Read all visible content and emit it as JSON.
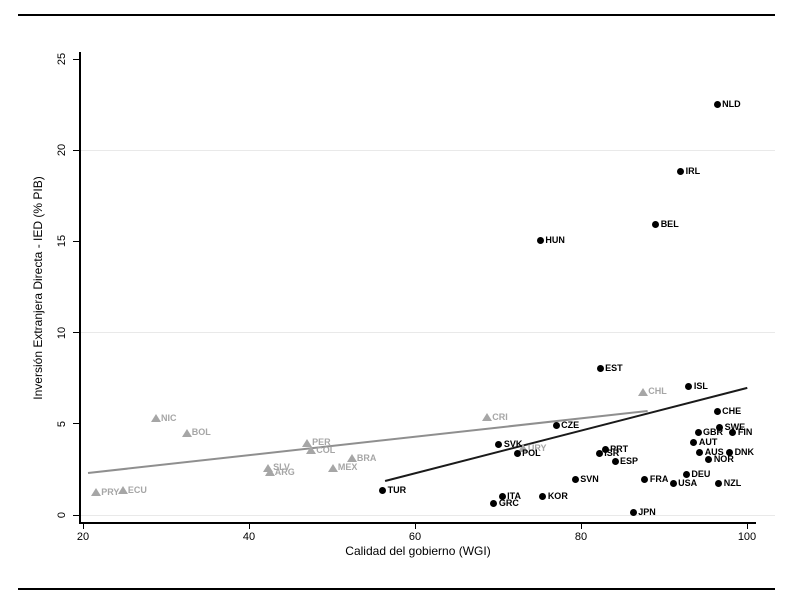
{
  "chart_data": {
    "type": "scatter",
    "title": "",
    "xlabel": "Calidad del gobierno (WGI)",
    "ylabel": "Inversión Extranjera Directa - IED (% PIB)",
    "xlim": [
      20,
      100
    ],
    "ylim": [
      0,
      25
    ],
    "x_ticks": [
      20,
      40,
      60,
      80,
      100
    ],
    "y_ticks": [
      0,
      5,
      10,
      15,
      20,
      25
    ],
    "gridline_y_values": [
      0,
      10,
      20
    ],
    "grid_color": "#e9e9e9",
    "series": [
      {
        "name": "gray-triangles",
        "marker": "triangle",
        "color": "#a6a6a6",
        "label_color": "#a6a6a6",
        "points": [
          {
            "label": "PRY",
            "x": 21.6,
            "y": 1.25
          },
          {
            "label": "ECU",
            "x": 24.8,
            "y": 1.35
          },
          {
            "label": "NIC",
            "x": 28.8,
            "y": 5.3
          },
          {
            "label": "BOL",
            "x": 32.5,
            "y": 4.5
          },
          {
            "label": "SLV",
            "x": 42.3,
            "y": 2.6
          },
          {
            "label": "ARG",
            "x": 42.5,
            "y": 2.35
          },
          {
            "label": "PER",
            "x": 47.0,
            "y": 3.95
          },
          {
            "label": "COL",
            "x": 47.5,
            "y": 3.55
          },
          {
            "label": "MEX",
            "x": 50.1,
            "y": 2.6
          },
          {
            "label": "BRA",
            "x": 52.4,
            "y": 3.1
          },
          {
            "label": "CRI",
            "x": 68.7,
            "y": 5.35
          },
          {
            "label": "URY",
            "x": 73.0,
            "y": 3.65
          },
          {
            "label": "CHL",
            "x": 87.5,
            "y": 6.75
          }
        ]
      },
      {
        "name": "black-dots",
        "marker": "circle",
        "color": "#000000",
        "label_color": "#000000",
        "points": [
          {
            "label": "NLD",
            "x": 96.4,
            "y": 22.5
          },
          {
            "label": "IRL",
            "x": 92.0,
            "y": 18.85
          },
          {
            "label": "BEL",
            "x": 89.0,
            "y": 15.95
          },
          {
            "label": "HUN",
            "x": 75.1,
            "y": 15.05
          },
          {
            "label": "EST",
            "x": 82.3,
            "y": 8.05
          },
          {
            "label": "ISL",
            "x": 93.0,
            "y": 7.05
          },
          {
            "label": "CHE",
            "x": 96.4,
            "y": 5.7
          },
          {
            "label": "CZE",
            "x": 77.0,
            "y": 4.9
          },
          {
            "label": "SWE",
            "x": 96.7,
            "y": 4.8
          },
          {
            "label": "GBR",
            "x": 94.1,
            "y": 4.5
          },
          {
            "label": "FIN",
            "x": 98.3,
            "y": 4.5
          },
          {
            "label": "AUT",
            "x": 93.6,
            "y": 4.0
          },
          {
            "label": "SVK",
            "x": 70.1,
            "y": 3.85
          },
          {
            "label": "PRT",
            "x": 82.9,
            "y": 3.6
          },
          {
            "label": "ISR",
            "x": 82.2,
            "y": 3.35
          },
          {
            "label": "POL",
            "x": 72.3,
            "y": 3.35
          },
          {
            "label": "AUS",
            "x": 94.3,
            "y": 3.4
          },
          {
            "label": "DNK",
            "x": 97.9,
            "y": 3.4
          },
          {
            "label": "NOR",
            "x": 95.4,
            "y": 3.05
          },
          {
            "label": "ESP",
            "x": 84.1,
            "y": 2.95
          },
          {
            "label": "DEU",
            "x": 92.7,
            "y": 2.2
          },
          {
            "label": "FRA",
            "x": 87.7,
            "y": 1.95
          },
          {
            "label": "SVN",
            "x": 79.3,
            "y": 1.95
          },
          {
            "label": "USA",
            "x": 91.1,
            "y": 1.75
          },
          {
            "label": "NZL",
            "x": 96.6,
            "y": 1.75
          },
          {
            "label": "TUR",
            "x": 56.1,
            "y": 1.35
          },
          {
            "label": "KOR",
            "x": 75.4,
            "y": 1.0
          },
          {
            "label": "ITA",
            "x": 70.5,
            "y": 1.0
          },
          {
            "label": "GRC",
            "x": 69.5,
            "y": 0.65
          },
          {
            "label": "JPN",
            "x": 86.3,
            "y": 0.15
          }
        ]
      }
    ],
    "trend_lines": [
      {
        "name": "gray-triangles-fit",
        "color": "#8f8f8f",
        "x1": 20.6,
        "y1": 2.3,
        "x2": 88.0,
        "y2": 5.7
      },
      {
        "name": "black-dots-fit",
        "color": "#1a1a1a",
        "x1": 56.4,
        "y1": 1.9,
        "x2": 100.0,
        "y2": 7.0
      }
    ]
  }
}
